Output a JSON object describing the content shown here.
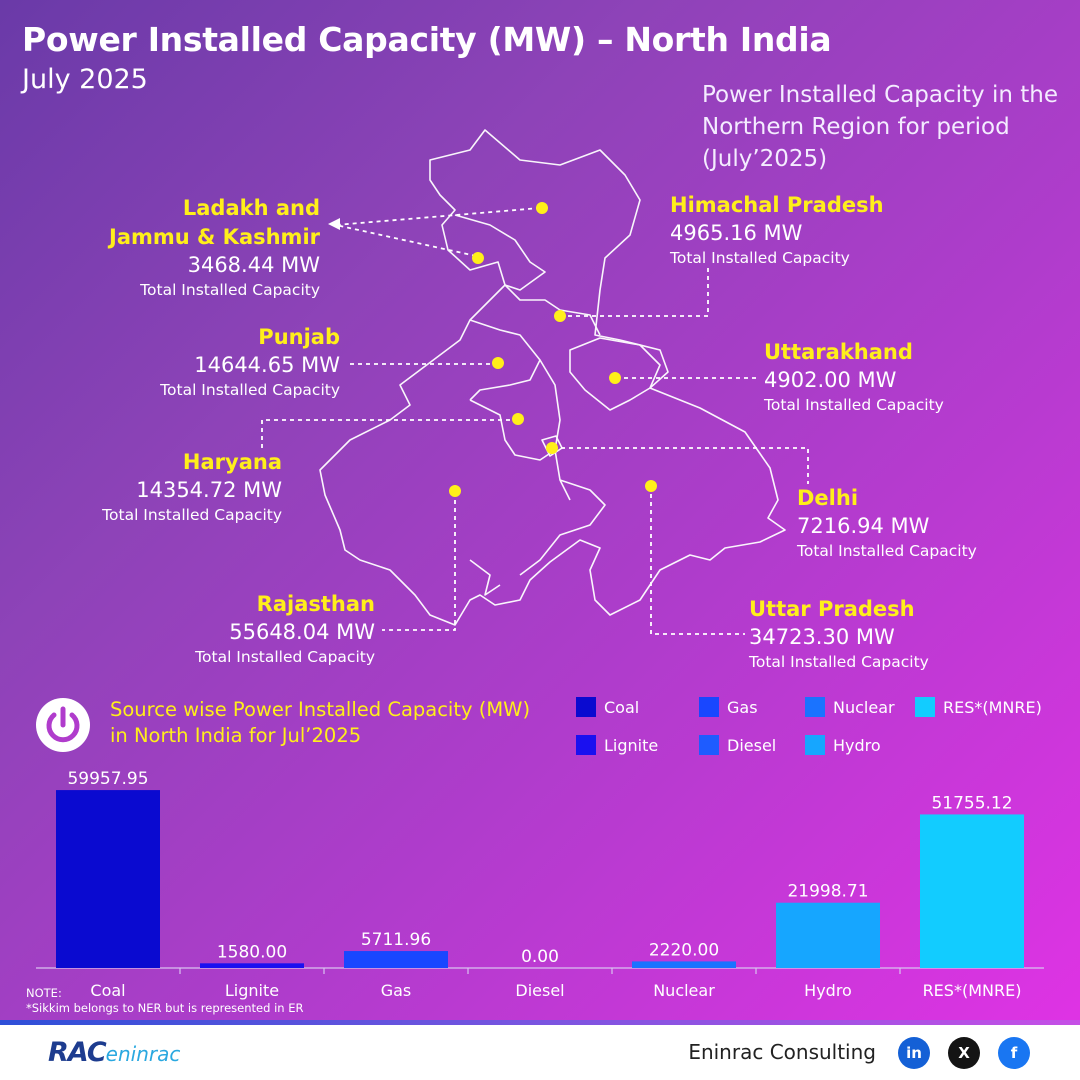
{
  "header": {
    "title": "Power Installed Capacity (MW) – North India",
    "subtitle": "July 2025",
    "period_note": "Power Installed Capacity in the Northern Region for period (July’2025)"
  },
  "states": [
    {
      "id": "jk",
      "name_line1": "Ladakh and",
      "name_line2": "Jammu & Kashmir",
      "value": "3468.44 MW",
      "caption": "Total Installed Capacity"
    },
    {
      "id": "hp",
      "name_line1": "Himachal Pradesh",
      "value": "4965.16 MW",
      "caption": "Total Installed Capacity"
    },
    {
      "id": "pb",
      "name_line1": "Punjab",
      "value": "14644.65 MW",
      "caption": "Total Installed Capacity"
    },
    {
      "id": "uk",
      "name_line1": "Uttarakhand",
      "value": "4902.00 MW",
      "caption": "Total Installed Capacity"
    },
    {
      "id": "hr",
      "name_line1": "Haryana",
      "value": "14354.72 MW",
      "caption": "Total Installed Capacity"
    },
    {
      "id": "dl",
      "name_line1": "Delhi",
      "value": "7216.94 MW",
      "caption": "Total Installed Capacity"
    },
    {
      "id": "rj",
      "name_line1": "Rajasthan",
      "value": "55648.04 MW",
      "caption": "Total Installed Capacity"
    },
    {
      "id": "up",
      "name_line1": "Uttar Pradesh",
      "value": "34723.30 MW",
      "caption": "Total Installed Capacity"
    }
  ],
  "source_section": {
    "title_line1": "Source wise Power Installed Capacity (MW)",
    "title_line2": "in North India for Jul’2025",
    "icon": "power-icon"
  },
  "legend": [
    {
      "label": "Coal",
      "color": "#0a0ad0"
    },
    {
      "label": "Gas",
      "color": "#1947ff"
    },
    {
      "label": "Nuclear",
      "color": "#1a73ff"
    },
    {
      "label": "RES*(MNRE)",
      "color": "#12ccff"
    },
    {
      "label": "Lignite",
      "color": "#1a10f0"
    },
    {
      "label": "Diesel",
      "color": "#1e5cff"
    },
    {
      "label": "Hydro",
      "color": "#16a6ff"
    }
  ],
  "chart_data": {
    "type": "bar",
    "categories": [
      "Coal",
      "Lignite",
      "Gas",
      "Diesel",
      "Nuclear",
      "Hydro",
      "RES*(MNRE)"
    ],
    "values": [
      59957.95,
      1580.0,
      5711.96,
      0.0,
      2220.0,
      21998.71,
      51755.12
    ],
    "value_labels": [
      "59957.95",
      "1580.00",
      "5711.96",
      "0.00",
      "2220.00",
      "21998.71",
      "51755.12"
    ],
    "colors": [
      "#0a0ad0",
      "#1a10f0",
      "#1947ff",
      "#1e5cff",
      "#1a73ff",
      "#16a6ff",
      "#12ccff"
    ],
    "ylim": [
      0,
      61000
    ],
    "grid": false
  },
  "note": {
    "label": "NOTE:",
    "text": "*Sikkim belongs to NER but is represented in ER"
  },
  "footer": {
    "logo_main": "RAC",
    "logo_sub": "eninrac",
    "brand": "Eninrac Consulting",
    "social": [
      {
        "icon": "linkedin-icon",
        "glyph": "in",
        "color": "#1460d6"
      },
      {
        "icon": "x-icon",
        "glyph": "X",
        "color": "#141414"
      },
      {
        "icon": "facebook-icon",
        "glyph": "f",
        "color": "#1976f2"
      }
    ]
  }
}
